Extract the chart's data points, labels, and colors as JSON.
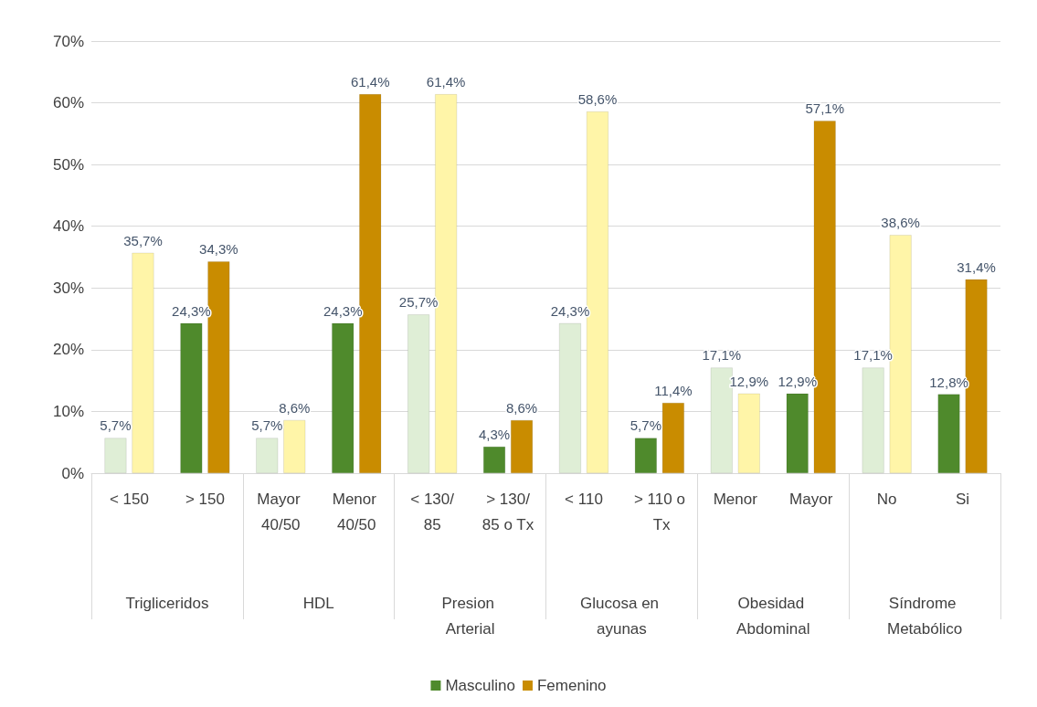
{
  "chart_data": {
    "type": "bar",
    "categories": [
      "< 150",
      "> 150",
      "Mayor 40/50",
      "Menor 40/50",
      "< 130/85",
      "> 130/85 o Tx",
      "< 110",
      "> 110 o Tx",
      "Menor",
      "Mayor",
      "No",
      "Si"
    ],
    "annotations": [
      "Trigliceridos",
      "HDL",
      "Presion Arterial",
      "Glucosa en ayunas",
      "Obesidad Abdominal",
      "Síndrome Metabólico"
    ],
    "series": [
      {
        "name": "Masculino",
        "color": "#4f8a2c",
        "colors": [
          "#dfeed6",
          "#4f8a2c",
          "#dfeed6",
          "#4f8a2c",
          "#dfeed6",
          "#4f8a2c",
          "#dfeed6",
          "#4f8a2c",
          "#dfeed6",
          "#4f8a2c",
          "#dfeed6",
          "#4f8a2c"
        ],
        "values": [
          5.7,
          24.3,
          5.7,
          24.3,
          25.7,
          4.3,
          24.3,
          5.7,
          17.1,
          12.9,
          17.1,
          12.8
        ],
        "value_labels": [
          "5,7%",
          "24,3%",
          "5,7%",
          "24,3%",
          "25,7%",
          "4,3%",
          "24,3%",
          "5,7%",
          "17,1%",
          "12,9%",
          "17,1%",
          "12,8%"
        ]
      },
      {
        "name": "Femenino",
        "color": "#c98c00",
        "colors": [
          "#fff5a8",
          "#c98c00",
          "#fff5a8",
          "#c98c00",
          "#fff5a8",
          "#c98c00",
          "#fff5a8",
          "#c98c00",
          "#fff5a8",
          "#c98c00",
          "#fff5a8",
          "#c98c00"
        ],
        "values": [
          35.7,
          34.3,
          8.6,
          61.4,
          61.4,
          8.6,
          58.6,
          11.4,
          12.9,
          57.1,
          38.6,
          31.4
        ],
        "value_labels": [
          "35,7%",
          "34,3%",
          "8,6%",
          "61,4%",
          "61,4%",
          "8,6%",
          "58,6%",
          "11,4%",
          "12,9%",
          "57,1%",
          "38,6%",
          "31,4%"
        ]
      }
    ],
    "ylim": [
      0,
      70
    ],
    "yticks": [
      {
        "value": 0,
        "label": "0%"
      },
      {
        "value": 10,
        "label": "10%"
      },
      {
        "value": 20,
        "label": "20%"
      },
      {
        "value": 30,
        "label": "30%"
      },
      {
        "value": 40,
        "label": "40%"
      },
      {
        "value": 50,
        "label": "50%"
      },
      {
        "value": 60,
        "label": "60%"
      },
      {
        "value": 70,
        "label": "70%"
      }
    ],
    "grid": "y",
    "legend": "bottom"
  }
}
